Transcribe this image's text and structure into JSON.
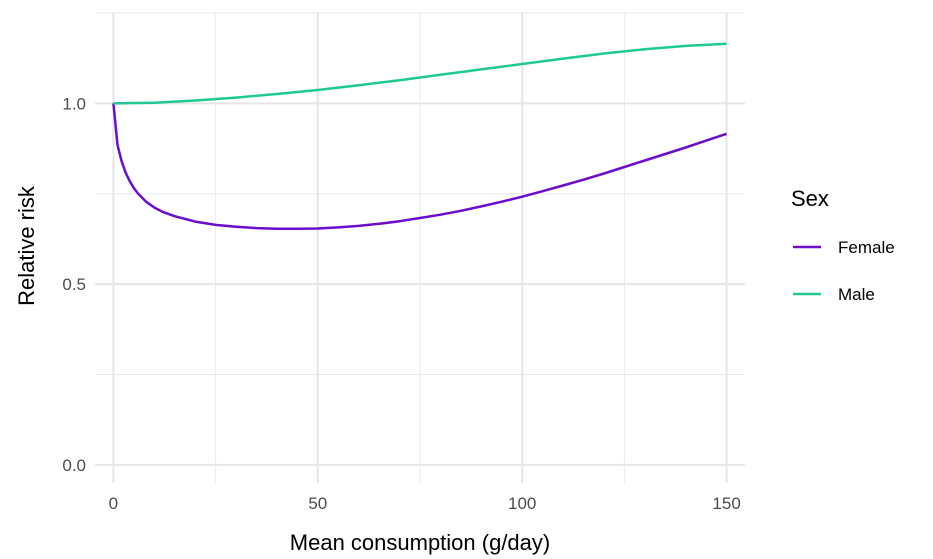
{
  "chart_data": {
    "type": "line",
    "title": "",
    "xlabel": "Mean consumption (g/day)",
    "ylabel": "Relative risk",
    "xlim": [
      -4.5,
      154.5
    ],
    "ylim": [
      -0.05,
      1.25
    ],
    "x_ticks": [
      0,
      50,
      100,
      150
    ],
    "x_tick_labels": [
      "0",
      "50",
      "100",
      "150"
    ],
    "y_ticks": [
      0.0,
      0.5,
      1.0
    ],
    "y_tick_labels": [
      "0.0",
      "0.5",
      "1.0"
    ],
    "grid": true,
    "legend": {
      "title": "Sex",
      "position": "right"
    },
    "series": [
      {
        "name": "Female",
        "color": "#6a0dcc",
        "x": [
          0,
          1,
          2,
          3,
          4,
          5,
          6,
          8,
          10,
          12,
          15,
          20,
          25,
          30,
          35,
          40,
          45,
          50,
          55,
          60,
          65,
          70,
          75,
          80,
          85,
          90,
          95,
          100,
          105,
          110,
          115,
          120,
          125,
          130,
          135,
          140,
          145,
          150
        ],
        "y": [
          1.0,
          0.885,
          0.84,
          0.808,
          0.785,
          0.766,
          0.751,
          0.728,
          0.712,
          0.7,
          0.688,
          0.673,
          0.664,
          0.659,
          0.655,
          0.653,
          0.653,
          0.654,
          0.657,
          0.661,
          0.667,
          0.674,
          0.683,
          0.692,
          0.703,
          0.715,
          0.728,
          0.742,
          0.757,
          0.773,
          0.789,
          0.806,
          0.824,
          0.842,
          0.86,
          0.878,
          0.897,
          0.916
        ]
      },
      {
        "name": "Male",
        "color": "#1fc995",
        "x": [
          0,
          10,
          20,
          30,
          40,
          50,
          60,
          70,
          80,
          90,
          100,
          110,
          120,
          130,
          140,
          150
        ],
        "y": [
          1.0,
          1.002,
          1.008,
          1.016,
          1.026,
          1.037,
          1.05,
          1.064,
          1.079,
          1.094,
          1.109,
          1.124,
          1.138,
          1.15,
          1.159,
          1.165
        ]
      }
    ]
  }
}
